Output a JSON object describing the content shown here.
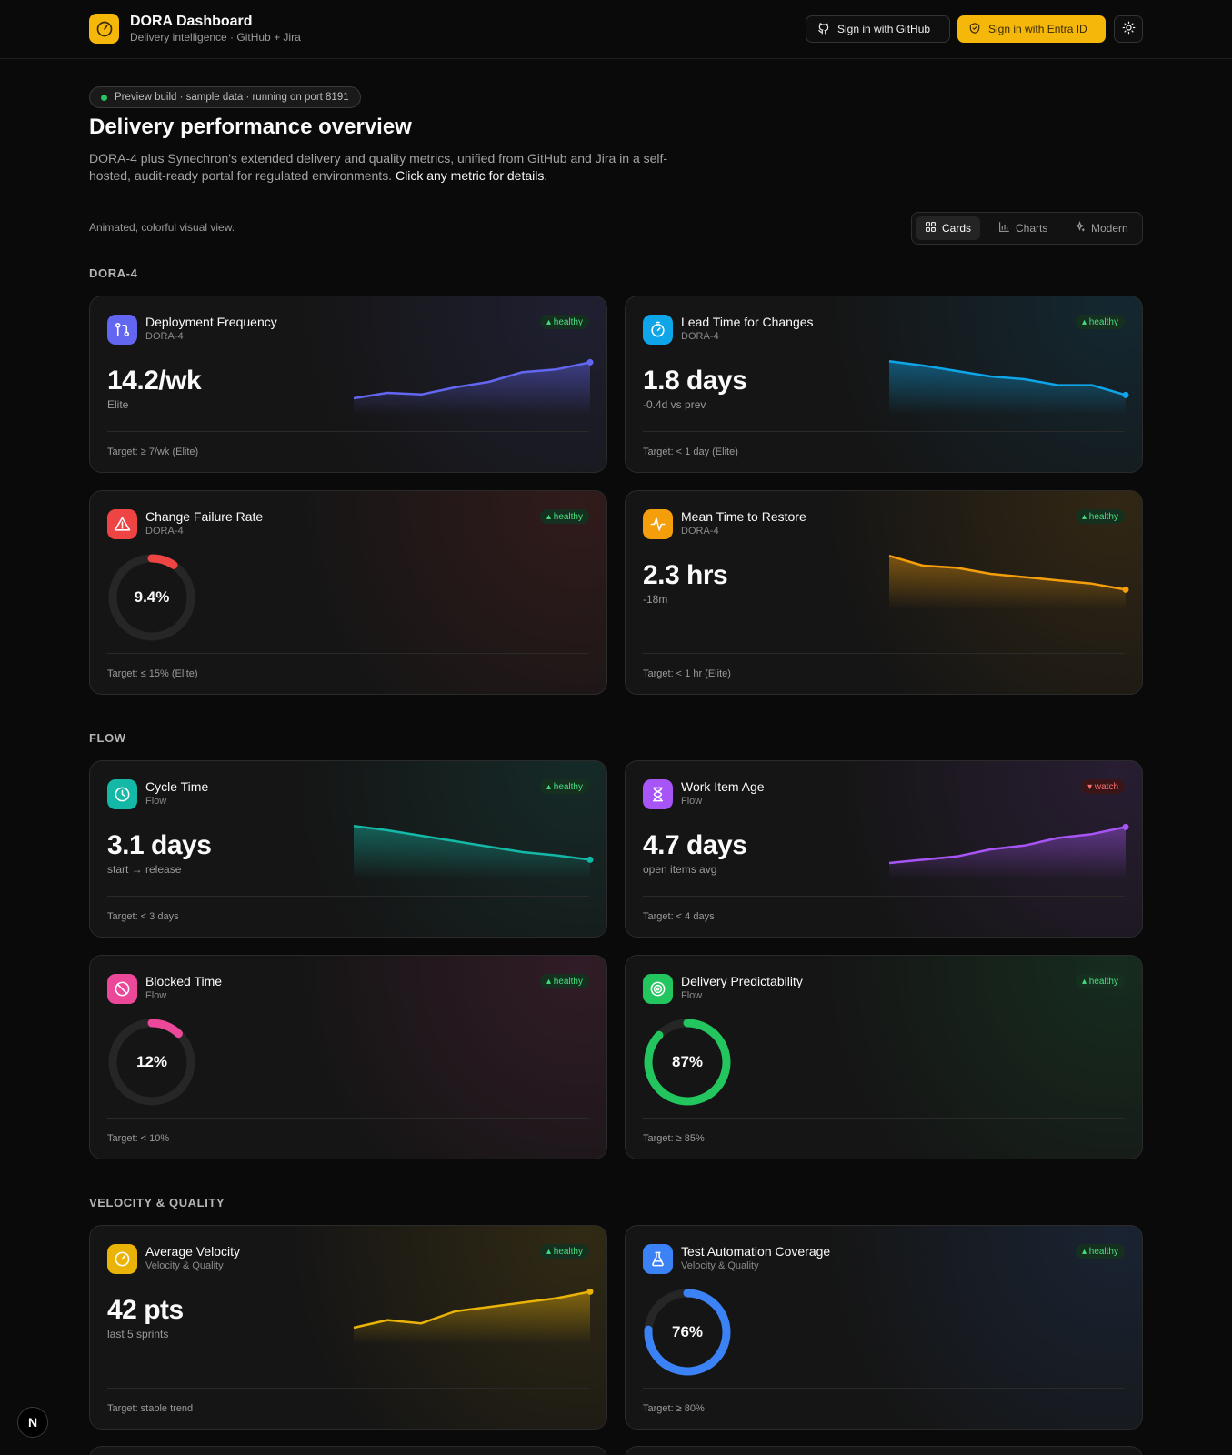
{
  "header": {
    "title": "DORA Dashboard",
    "subtitle": "Delivery intelligence · GitHub + Jira",
    "github_btn": "Sign in with GitHub",
    "entra_btn": "Sign in with Entra ID",
    "theme_icon": "sun-icon"
  },
  "hero": {
    "pill": "Preview build · sample data · running on port 8191",
    "title": "Delivery performance overview",
    "intro": "DORA-4 plus Synechron's extended delivery and quality metrics, unified from GitHub and Jira in a self-hosted, audit-ready portal for regulated environments.",
    "intro_cta": "Click any metric for details.",
    "view_note": "Animated, colorful visual view."
  },
  "views": [
    "Cards",
    "Charts",
    "Modern"
  ],
  "active_view": "Cards",
  "sections": {
    "dora": "DORA-4",
    "flow": "FLOW",
    "velocity": "VELOCITY & QUALITY"
  },
  "metrics": {
    "deploy_freq": {
      "title": "Deployment Frequency",
      "category": "DORA-4",
      "value": "14.2/wk",
      "sub": "Elite",
      "target": "Target: ≥ 7/wk (Elite)",
      "status": "healthy",
      "color": "#6366f1",
      "icon": "git-pull-request-icon",
      "trend": [
        3,
        4,
        3.7,
        5,
        6,
        7.8,
        8.3,
        9.6
      ]
    },
    "lead_time": {
      "title": "Lead Time for Changes",
      "category": "DORA-4",
      "value": "1.8 days",
      "sub": "-0.4d vs prev",
      "target": "Target: < 1 day (Elite)",
      "status": "healthy",
      "color": "#0ea5e9",
      "icon": "timer-icon",
      "trend": [
        9.8,
        9,
        8,
        7,
        6.5,
        5.4,
        5.4,
        3.6
      ]
    },
    "cfr": {
      "title": "Change Failure Rate",
      "category": "DORA-4",
      "value": "9.4%",
      "ring_pct": 9.4,
      "target": "Target: ≤ 15% (Elite)",
      "status": "healthy",
      "color": "#ef4444",
      "icon": "alert-triangle-icon"
    },
    "mttr": {
      "title": "Mean Time to Restore",
      "category": "DORA-4",
      "value": "2.3 hrs",
      "sub": "-18m",
      "target": "Target: < 1 hr (Elite)",
      "status": "healthy",
      "color": "#f59e0b",
      "icon": "activity-icon",
      "trend": [
        9.8,
        8,
        7.6,
        6.5,
        5.9,
        5.3,
        4.7,
        3.6
      ]
    },
    "cycle_time": {
      "title": "Cycle Time",
      "category": "Flow",
      "value": "3.1 days",
      "sub": "start → release",
      "target": "Target: < 3 days",
      "status": "healthy",
      "color": "#14b8a6",
      "icon": "clock-icon",
      "trend": [
        9.8,
        9,
        8,
        7,
        6,
        5,
        4.4,
        3.6
      ]
    },
    "work_item_age": {
      "title": "Work Item Age",
      "category": "Flow",
      "value": "4.7 days",
      "sub": "open items avg",
      "target": "Target: < 4 days",
      "status": "watch",
      "color": "#a855f7",
      "icon": "hourglass-icon",
      "trend": [
        3,
        3.6,
        4.2,
        5.5,
        6.2,
        7.6,
        8.3,
        9.6
      ]
    },
    "blocked_time": {
      "title": "Blocked Time",
      "category": "Flow",
      "value": "12%",
      "ring_pct": 12,
      "target": "Target: < 10%",
      "status": "healthy",
      "color": "#ec4899",
      "icon": "ban-icon"
    },
    "predictability": {
      "title": "Delivery Predictability",
      "category": "Flow",
      "value": "87%",
      "ring_pct": 87,
      "target": "Target: ≥ 85%",
      "status": "healthy",
      "color": "#22c55e",
      "icon": "target-icon"
    },
    "velocity": {
      "title": "Average Velocity",
      "category": "Velocity & Quality",
      "value": "42 pts",
      "sub": "last 5 sprints",
      "target": "Target: stable trend",
      "status": "healthy",
      "color": "#eab308",
      "icon": "gauge-icon",
      "trend": [
        3,
        4.4,
        3.8,
        6,
        6.8,
        7.6,
        8.4,
        9.6
      ]
    },
    "test_automation": {
      "title": "Test Automation Coverage",
      "category": "Velocity & Quality",
      "value": "76%",
      "ring_pct": 76,
      "target": "Target: ≥ 80%",
      "status": "healthy",
      "color": "#3b82f6",
      "icon": "flask-icon"
    }
  },
  "status_labels": {
    "healthy": "▴ healthy",
    "watch": "▾ watch"
  },
  "dev_badge": "N"
}
